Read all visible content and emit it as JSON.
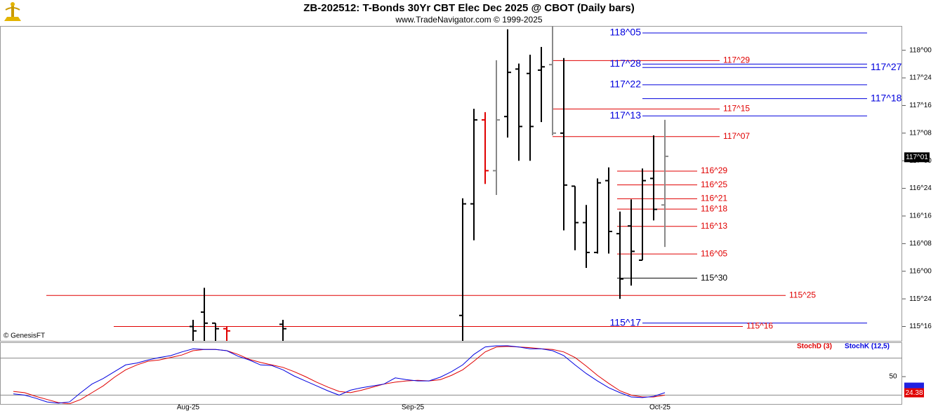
{
  "header": {
    "title": "ZB-202512:  T-Bonds 30Yr CBT Elec Dec 2025 @ CBOT  (Daily bars)",
    "subtitle": "www.TradeNavigator.com © 1999-2025",
    "source": "© GenesisFT"
  },
  "chart_data": [
    {
      "type": "ohlc",
      "categories": [
        null,
        null,
        null,
        null,
        null,
        null,
        null,
        null,
        null,
        null,
        null,
        null,
        null,
        null,
        null,
        null,
        "Aug-25",
        null,
        null,
        null,
        null,
        null,
        null,
        null,
        null,
        null,
        null,
        null,
        null,
        null,
        null,
        null,
        null,
        null,
        null,
        null,
        "Sep-25",
        null,
        null,
        null,
        null,
        null,
        null,
        null,
        null,
        null,
        null,
        null,
        null,
        null,
        null,
        null,
        null,
        null,
        null,
        null,
        null,
        null,
        "Oct-25",
        null,
        null,
        null,
        null,
        null,
        null,
        null,
        null,
        null,
        null,
        null,
        null,
        null,
        null,
        null,
        null,
        null,
        null,
        null,
        null,
        null
      ],
      "open": [
        null,
        null,
        null,
        null,
        null,
        null,
        null,
        null,
        null,
        null,
        null,
        null,
        null,
        null,
        null,
        null,
        115.5,
        115.63,
        115.53,
        115.48,
        null,
        null,
        null,
        null,
        115.52,
        null,
        null,
        null,
        null,
        null,
        null,
        null,
        null,
        null,
        null,
        null,
        null,
        null,
        null,
        null,
        115.6,
        116.61,
        117.37,
        116.91,
        117.4,
        117.83,
        117.79,
        117.82,
        117.87,
        117.25,
        116.77,
        116.44,
        116.17,
        116.82,
        116.34,
        116.41,
        116.1,
        116.84,
        116.6,
        null,
        null,
        null,
        null,
        null,
        null,
        null,
        null,
        null,
        null,
        null,
        null,
        null,
        null,
        null,
        null,
        null,
        null,
        null,
        null,
        null
      ],
      "high": [
        null,
        null,
        null,
        null,
        null,
        null,
        null,
        null,
        null,
        null,
        null,
        null,
        null,
        null,
        null,
        null,
        115.56,
        115.85,
        115.53,
        115.5,
        null,
        null,
        null,
        null,
        115.56,
        null,
        null,
        null,
        null,
        null,
        null,
        null,
        null,
        null,
        null,
        null,
        null,
        null,
        null,
        null,
        116.66,
        117.47,
        117.44,
        117.91,
        118.19,
        117.88,
        117.96,
        118.03,
        118.22,
        117.93,
        116.77,
        116.6,
        116.84,
        116.94,
        116.54,
        116.65,
        116.93,
        117.23,
        117.37,
        null,
        null,
        null,
        null,
        null,
        null,
        null,
        null,
        null,
        null,
        null,
        null,
        null,
        null,
        null,
        null,
        null,
        null,
        null,
        null,
        null
      ],
      "low": [
        null,
        null,
        null,
        null,
        null,
        null,
        null,
        null,
        null,
        null,
        null,
        null,
        null,
        null,
        null,
        null,
        115.3,
        115.3,
        115.3,
        115.3,
        null,
        null,
        null,
        null,
        115.3,
        null,
        null,
        null,
        null,
        null,
        null,
        null,
        null,
        null,
        null,
        null,
        null,
        null,
        null,
        null,
        115.3,
        116.28,
        116.79,
        116.69,
        117.21,
        117,
        117,
        117.35,
        117.23,
        116.37,
        116.19,
        116.03,
        116.16,
        116.16,
        115.75,
        115.87,
        116.1,
        116.46,
        116.22,
        null,
        null,
        null,
        null,
        null,
        null,
        null,
        null,
        null,
        null,
        null,
        null,
        null,
        null,
        null,
        null,
        null,
        null,
        null,
        null,
        null
      ],
      "close": [
        null,
        null,
        null,
        null,
        null,
        null,
        null,
        null,
        null,
        null,
        null,
        null,
        null,
        null,
        null,
        null,
        115.46,
        115.53,
        115.48,
        115.46,
        null,
        null,
        null,
        null,
        115.48,
        null,
        null,
        null,
        null,
        null,
        null,
        null,
        null,
        null,
        null,
        null,
        null,
        null,
        null,
        null,
        116.61,
        117.37,
        116.91,
        117.37,
        117.8,
        117.31,
        117.31,
        117.85,
        117.25,
        116.78,
        116.44,
        116.17,
        116.8,
        116.36,
        115.93,
        116.18,
        116.82,
        116.56,
        117.04,
        null,
        null,
        null,
        null,
        null,
        null,
        null,
        null,
        null,
        null,
        null,
        null,
        null,
        null,
        null,
        null,
        null,
        null,
        null,
        null,
        null
      ],
      "bar_colors": [
        null,
        null,
        null,
        null,
        null,
        null,
        null,
        null,
        null,
        null,
        null,
        null,
        null,
        null,
        null,
        null,
        "#000000",
        "#000000",
        "#000000",
        "#e00000",
        null,
        null,
        null,
        null,
        "#000000",
        null,
        null,
        null,
        null,
        null,
        null,
        null,
        null,
        null,
        null,
        null,
        null,
        null,
        null,
        null,
        "#000000",
        "#000000",
        "#e00000",
        "#888888",
        "#000000",
        "#000000",
        "#000000",
        "#000000",
        "#888888",
        "#000000",
        "#000000",
        "#000000",
        "#000000",
        "#000000",
        "#000000",
        "#000000",
        "#000000",
        "#000000",
        "#888888",
        null,
        null,
        null,
        null,
        null,
        null,
        null,
        null,
        null,
        null,
        null,
        null,
        null,
        null,
        null,
        null,
        null,
        null,
        null,
        null,
        null
      ],
      "ylim": [
        115.37,
        118.22
      ],
      "yticks": [
        {
          "value": 115.5,
          "label": "115^16"
        },
        {
          "value": 115.75,
          "label": "115^24"
        },
        {
          "value": 116,
          "label": "116^00"
        },
        {
          "value": 116.25,
          "label": "116^08"
        },
        {
          "value": 116.5,
          "label": "116^16"
        },
        {
          "value": 116.75,
          "label": "116^24"
        },
        {
          "value": 117,
          "label": "117^00"
        },
        {
          "value": 117.25,
          "label": "117^08"
        },
        {
          "value": 117.5,
          "label": "117^16"
        },
        {
          "value": 117.75,
          "label": "117^24"
        },
        {
          "value": 118,
          "label": "118^00"
        }
      ],
      "levels": [
        {
          "label": "118^05",
          "value": 118.15625,
          "color": "#0000dd",
          "from": 56,
          "to": 76,
          "label_side": "left"
        },
        {
          "label": "117^29",
          "value": 117.90625,
          "color": "#e00000",
          "from": 48,
          "to": 62.875,
          "label_side": "right"
        },
        {
          "label": "117^28",
          "value": 117.875,
          "color": "#0000dd",
          "from": 56,
          "to": 76,
          "label_side": "left"
        },
        {
          "label": "117^27",
          "value": 117.84375,
          "color": "#0000dd",
          "from": 56,
          "to": 76,
          "label_side": "right"
        },
        {
          "label": "117^22",
          "value": 117.6875,
          "color": "#0000dd",
          "from": 56,
          "to": 76,
          "label_side": "left"
        },
        {
          "label": "117^18",
          "value": 117.5625,
          "color": "#0000dd",
          "from": 56,
          "to": 76,
          "label_side": "right"
        },
        {
          "label": "117^15",
          "value": 117.46875,
          "color": "#e00000",
          "from": 48,
          "to": 62.875,
          "label_side": "right"
        },
        {
          "label": "117^13",
          "value": 117.40625,
          "color": "#0000dd",
          "from": 56,
          "to": 76,
          "label_side": "left"
        },
        {
          "label": "117^07",
          "value": 117.21875,
          "color": "#e00000",
          "from": 48,
          "to": 62.875,
          "label_side": "right"
        },
        {
          "label": "116^29",
          "value": 116.90625,
          "color": "#e00000",
          "from": 53.75,
          "to": 60.875,
          "label_side": "right"
        },
        {
          "label": "116^25",
          "value": 116.78125,
          "color": "#e00000",
          "from": 53.75,
          "to": 60.875,
          "label_side": "right"
        },
        {
          "label": "116^21",
          "value": 116.65625,
          "color": "#e00000",
          "from": 53.75,
          "to": 60.875,
          "label_side": "right"
        },
        {
          "label": "116^18",
          "value": 116.5625,
          "color": "#e00000",
          "from": 53.75,
          "to": 60.875,
          "label_side": "right"
        },
        {
          "label": "116^13",
          "value": 116.40625,
          "color": "#e00000",
          "from": 53.75,
          "to": 60.875,
          "label_side": "right"
        },
        {
          "label": "116^05",
          "value": 116.15625,
          "color": "#e00000",
          "from": 53.75,
          "to": 60.875,
          "label_side": "right"
        },
        {
          "label": "115^30",
          "value": 115.9375,
          "color": "#000000",
          "from": 53.75,
          "to": 60.875,
          "label_side": "right"
        },
        {
          "label": "115^25",
          "value": 115.78125,
          "color": "#e00000",
          "from": 2.9375,
          "to": 68.75,
          "label_side": "right"
        },
        {
          "label": "115^17",
          "value": 115.53125,
          "color": "#0000dd",
          "from": 56,
          "to": 76,
          "label_side": "left"
        },
        {
          "label": "115^16",
          "value": 115.5,
          "color": "#e00000",
          "from": 8.9375,
          "to": 64.9375,
          "label_side": "right"
        }
      ],
      "last_price": {
        "value": 117.03125,
        "label": "117^01"
      }
    },
    {
      "type": "line",
      "series": [
        {
          "name": "StochD (3)",
          "color": "#e00000",
          "values": [
            26,
            24,
            18,
            13,
            8,
            6,
            13,
            24,
            35,
            49,
            61,
            69,
            75,
            77,
            81,
            85,
            92,
            94,
            94,
            92,
            86,
            78,
            73,
            69,
            65,
            58,
            50,
            41,
            33,
            26,
            24,
            28,
            33,
            38,
            41,
            43,
            44,
            43,
            45,
            52,
            61,
            75,
            90,
            98,
            99,
            98,
            97,
            95,
            94,
            90,
            81,
            67,
            52,
            39,
            27,
            20,
            17,
            17,
            20,
            null,
            null,
            null,
            null,
            null,
            null,
            null,
            null,
            null,
            null,
            null,
            null,
            null,
            null,
            null,
            null,
            null,
            null,
            null,
            null,
            null
          ]
        },
        {
          "name": "StochK (12,5)",
          "color": "#0000e0",
          "values": [
            22,
            20,
            15,
            9,
            7,
            9,
            24,
            38,
            47,
            58,
            69,
            72,
            77,
            81,
            84,
            90,
            95,
            94,
            94,
            92,
            83,
            77,
            69,
            68,
            61,
            51,
            43,
            35,
            27,
            20,
            28,
            32,
            35,
            38,
            48,
            45,
            43,
            43,
            49,
            58,
            69,
            86,
            98,
            100,
            100,
            98,
            95,
            95,
            92,
            84,
            69,
            55,
            43,
            32,
            24,
            17,
            16,
            18,
            24,
            null,
            null,
            null,
            null,
            null,
            null,
            null,
            null,
            null,
            null,
            null,
            null,
            null,
            null,
            null,
            null,
            null,
            null,
            null,
            null,
            null
          ]
        }
      ],
      "ylim": [
        0,
        100
      ],
      "yticks": [
        50
      ],
      "levels": [
        20,
        80
      ],
      "last_value": 24.38
    }
  ]
}
